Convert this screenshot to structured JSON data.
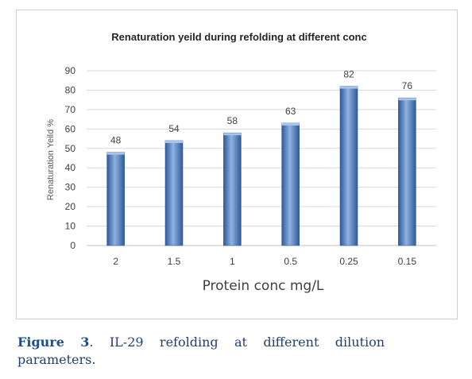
{
  "chart_data": {
    "type": "bar",
    "title": "Renaturation yeild during refolding at different conc",
    "xlabel": "Protein conc mg/L",
    "ylabel": "Renaturation Yeild %",
    "categories": [
      "2",
      "1.5",
      "1",
      "0.5",
      "0.25",
      "0.15"
    ],
    "values": [
      48,
      54,
      58,
      63,
      82,
      76
    ],
    "ylim": [
      0,
      90
    ],
    "yticks": [
      0,
      10,
      20,
      30,
      40,
      50,
      60,
      70,
      80,
      90
    ],
    "grid": true,
    "legend": "none",
    "bar_color": "#4f7ec0",
    "bar_color_dark": "#2e5a9a",
    "bar_color_light": "#8fb2e0"
  },
  "caption": {
    "label": "Figure",
    "number": "3",
    "text": ". IL-29 refolding at different dilution parameters."
  }
}
